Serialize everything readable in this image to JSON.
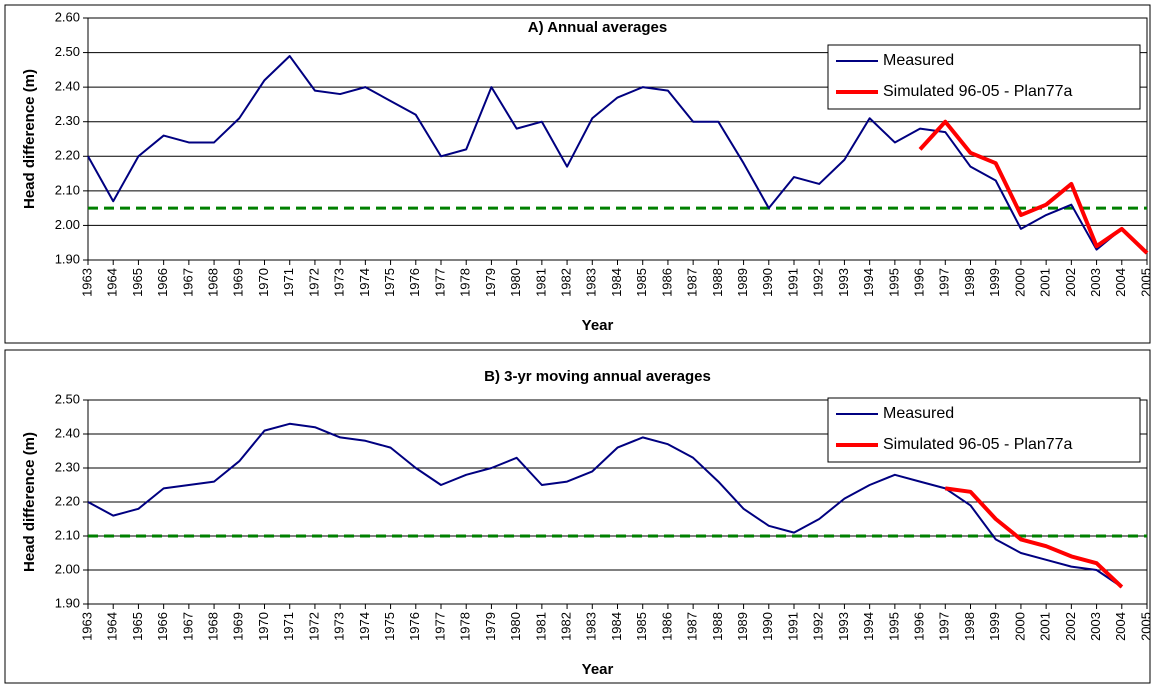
{
  "chart_data": [
    {
      "type": "line",
      "title": "A) Annual averages",
      "x_label": "Year",
      "y_label": "Head difference (m)",
      "x": [
        1963,
        1964,
        1965,
        1966,
        1967,
        1968,
        1969,
        1970,
        1971,
        1972,
        1973,
        1974,
        1975,
        1976,
        1977,
        1978,
        1979,
        1980,
        1981,
        1982,
        1983,
        1984,
        1985,
        1986,
        1987,
        1988,
        1989,
        1990,
        1991,
        1992,
        1993,
        1994,
        1995,
        1996,
        1997,
        1998,
        1999,
        2000,
        2001,
        2002,
        2003,
        2004,
        2005
      ],
      "xlim": [
        1963,
        2005
      ],
      "ylim": [
        1.9,
        2.6
      ],
      "yticks": [
        {
          "value": 1.9,
          "label": "1.90"
        },
        {
          "value": 2.0,
          "label": "2.00"
        },
        {
          "value": 2.1,
          "label": "2.10"
        },
        {
          "value": 2.2,
          "label": "2.20"
        },
        {
          "value": 2.3,
          "label": "2.30"
        },
        {
          "value": 2.4,
          "label": "2.40"
        },
        {
          "value": 2.5,
          "label": "2.50"
        },
        {
          "value": 2.6,
          "label": "2.60"
        }
      ],
      "grid": true,
      "legend": "upper right",
      "reference_line": {
        "value": 2.05,
        "color": "#008000"
      },
      "series": [
        {
          "name": "Measured",
          "color": "#000080",
          "values": [
            2.2,
            2.07,
            2.2,
            2.26,
            2.24,
            2.24,
            2.31,
            2.42,
            2.49,
            2.39,
            2.38,
            2.4,
            2.36,
            2.32,
            2.2,
            2.22,
            2.4,
            2.28,
            2.3,
            2.17,
            2.31,
            2.37,
            2.4,
            2.39,
            2.3,
            2.3,
            2.18,
            2.05,
            2.14,
            2.12,
            2.19,
            2.31,
            2.24,
            2.28,
            2.27,
            2.17,
            2.13,
            1.99,
            2.03,
            2.06,
            1.93,
            1.99,
            1.92
          ]
        },
        {
          "name": "Simulated 96-05 - Plan77a",
          "color": "#ff0000",
          "values": [
            null,
            null,
            null,
            null,
            null,
            null,
            null,
            null,
            null,
            null,
            null,
            null,
            null,
            null,
            null,
            null,
            null,
            null,
            null,
            null,
            null,
            null,
            null,
            null,
            null,
            null,
            null,
            null,
            null,
            null,
            null,
            null,
            null,
            2.22,
            2.3,
            2.21,
            2.18,
            2.03,
            2.06,
            2.12,
            1.94,
            1.99,
            1.92
          ]
        }
      ]
    },
    {
      "type": "line",
      "title": "B) 3-yr moving annual averages",
      "x_label": "Year",
      "y_label": "Head difference (m)",
      "x": [
        1963,
        1964,
        1965,
        1966,
        1967,
        1968,
        1969,
        1970,
        1971,
        1972,
        1973,
        1974,
        1975,
        1976,
        1977,
        1978,
        1979,
        1980,
        1981,
        1982,
        1983,
        1984,
        1985,
        1986,
        1987,
        1988,
        1989,
        1990,
        1991,
        1992,
        1993,
        1994,
        1995,
        1996,
        1997,
        1998,
        1999,
        2000,
        2001,
        2002,
        2003,
        2004,
        2005
      ],
      "xlim": [
        1963,
        2005
      ],
      "ylim": [
        1.9,
        2.5
      ],
      "yticks": [
        {
          "value": 1.9,
          "label": "1.90"
        },
        {
          "value": 2.0,
          "label": "2.00"
        },
        {
          "value": 2.1,
          "label": "2.10"
        },
        {
          "value": 2.2,
          "label": "2.20"
        },
        {
          "value": 2.3,
          "label": "2.30"
        },
        {
          "value": 2.4,
          "label": "2.40"
        },
        {
          "value": 2.5,
          "label": "2.50"
        }
      ],
      "grid": true,
      "legend": "upper right",
      "reference_line": {
        "value": 2.1,
        "color": "#008000"
      },
      "series": [
        {
          "name": "Measured",
          "color": "#000080",
          "values": [
            2.2,
            2.16,
            2.18,
            2.24,
            2.25,
            2.26,
            2.32,
            2.41,
            2.43,
            2.42,
            2.39,
            2.38,
            2.36,
            2.3,
            2.25,
            2.28,
            2.3,
            2.33,
            2.25,
            2.26,
            2.29,
            2.36,
            2.39,
            2.37,
            2.33,
            2.26,
            2.18,
            2.13,
            2.11,
            2.15,
            2.21,
            2.25,
            2.28,
            2.26,
            2.24,
            2.19,
            2.09,
            2.05,
            2.03,
            2.01,
            2.0,
            1.95,
            null
          ]
        },
        {
          "name": "Simulated 96-05 - Plan77a",
          "color": "#ff0000",
          "values": [
            null,
            null,
            null,
            null,
            null,
            null,
            null,
            null,
            null,
            null,
            null,
            null,
            null,
            null,
            null,
            null,
            null,
            null,
            null,
            null,
            null,
            null,
            null,
            null,
            null,
            null,
            null,
            null,
            null,
            null,
            null,
            null,
            null,
            null,
            2.24,
            2.23,
            2.15,
            2.09,
            2.07,
            2.04,
            2.02,
            1.95,
            null
          ]
        }
      ]
    }
  ]
}
